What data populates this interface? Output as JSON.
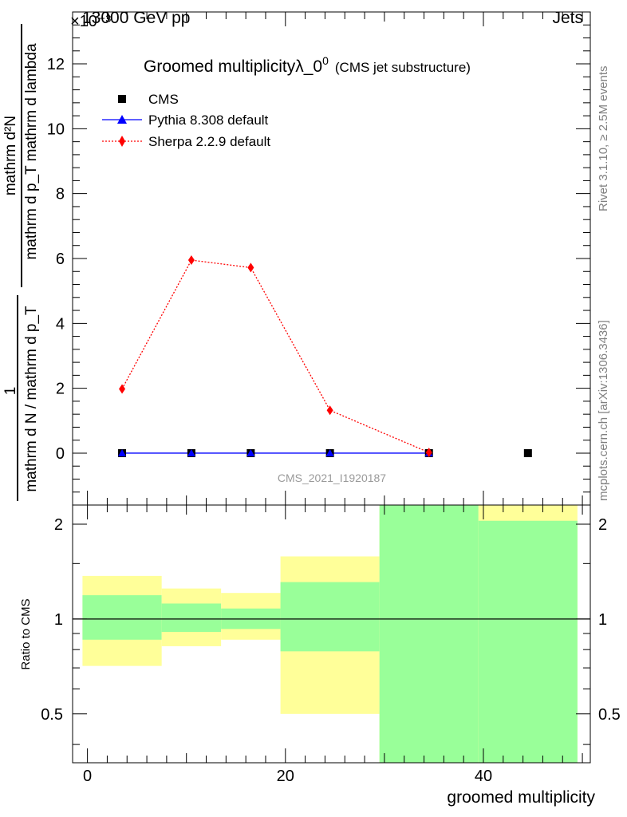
{
  "header": {
    "left": "13000 GeV pp",
    "right": "Jets",
    "exponent": "×10⁻³"
  },
  "side_labels": {
    "rivet": "Rivet 3.1.10, ≥ 2.5M events",
    "mcplots": "mcplots.cern.ch [arXiv:1306.3436]"
  },
  "watermark": "CMS_2021_I1920187",
  "colors": {
    "cms": "#000000",
    "pythia": "#0000ff",
    "sherpa": "#ff0000",
    "band_inner": "#99ff99",
    "band_outer": "#ffff99"
  },
  "chart_data": [
    {
      "type": "scatter",
      "panel": "main",
      "title": "Groomed multiplicityλ_0",
      "title_sup": "0",
      "title_note": "(CMS jet substructure)",
      "ylabel_top": "1",
      "ylabel_num_lines": [
        "mathrm d²N",
        "mathrm d p_T mathrm d lambda"
      ],
      "ylabel_den_lines": [
        "mathrm d N / mathrm d p_T"
      ],
      "y_unit_exponent": -3,
      "xlim": [
        -1.5,
        50.8
      ],
      "ylim": [
        -1.6,
        13.6
      ],
      "yticks": [
        0,
        2,
        4,
        6,
        8,
        10,
        12
      ],
      "ytick_labels": [
        "0",
        "2",
        "4",
        "6",
        "8",
        "10",
        "12"
      ],
      "legend": {
        "placement": "top-left",
        "entries": [
          "CMS",
          "Pythia 8.308 default",
          "Sherpa 2.2.9 default"
        ]
      },
      "series": [
        {
          "name": "CMS",
          "marker": "square",
          "line": "none",
          "x": [
            3.5,
            10.5,
            16.5,
            24.5,
            34.5,
            44.5
          ],
          "y": [
            0,
            0,
            0,
            0,
            0,
            0
          ]
        },
        {
          "name": "Pythia 8.308 default",
          "marker": "triangle",
          "line": "solid",
          "x": [
            3.5,
            10.5,
            16.5,
            24.5,
            34.5
          ],
          "y": [
            0,
            0,
            0,
            0,
            0
          ]
        },
        {
          "name": "Sherpa 2.2.9 default",
          "marker": "diamond",
          "line": "dotted",
          "x": [
            3.5,
            10.5,
            16.5,
            24.5,
            34.5
          ],
          "y": [
            1.98,
            5.95,
            5.72,
            1.32,
            0.02
          ]
        }
      ]
    },
    {
      "type": "area",
      "panel": "ratio",
      "ylabel": "Ratio to CMS",
      "xlabel": "groomed multiplicity",
      "xlim": [
        -1.5,
        50.8
      ],
      "ylim": [
        0.35,
        2.3
      ],
      "yticks": [
        0.5,
        1,
        2
      ],
      "ytick_labels": [
        "0.5",
        "1",
        "2"
      ],
      "xticks": [
        0,
        20,
        40
      ],
      "xtick_labels": [
        "0",
        "20",
        "40"
      ],
      "reference_line": 1,
      "bins": [
        {
          "x_low": -0.5,
          "x_high": 7.5,
          "inner": [
            0.86,
            1.19
          ],
          "outer": [
            0.71,
            1.37
          ]
        },
        {
          "x_low": 7.5,
          "x_high": 13.5,
          "inner": [
            0.91,
            1.12
          ],
          "outer": [
            0.82,
            1.25
          ]
        },
        {
          "x_low": 13.5,
          "x_high": 19.5,
          "inner": [
            0.93,
            1.08
          ],
          "outer": [
            0.86,
            1.21
          ]
        },
        {
          "x_low": 19.5,
          "x_high": 29.5,
          "inner": [
            0.79,
            1.31
          ],
          "outer": [
            0.5,
            1.58
          ]
        },
        {
          "x_low": 29.5,
          "x_high": 39.5,
          "inner": [
            0.35,
            2.3
          ],
          "outer": [
            0.35,
            2.3
          ]
        },
        {
          "x_low": 39.5,
          "x_high": 49.5,
          "inner": [
            0.35,
            2.05
          ],
          "outer": [
            0.35,
            2.3
          ]
        }
      ]
    }
  ]
}
